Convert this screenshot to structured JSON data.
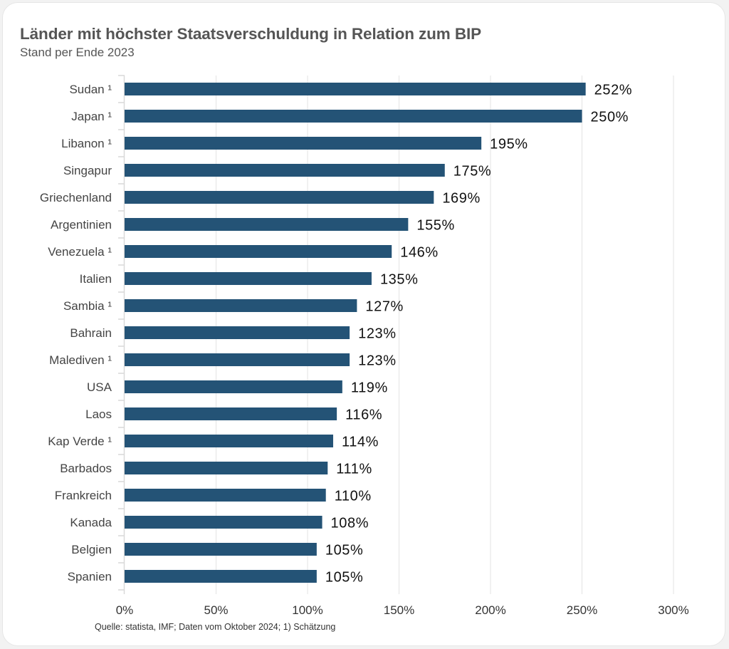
{
  "chart_data": {
    "type": "bar",
    "orientation": "horizontal",
    "title": "Länder mit höchster Staatsverschuldung in Relation zum BIP",
    "subtitle": "Stand per Ende 2023",
    "xlabel": "",
    "ylabel": "",
    "categories": [
      "Sudan ¹",
      "Japan ¹",
      "Libanon ¹",
      "Singapur",
      "Griechenland",
      "Argentinien",
      "Venezuela ¹",
      "Italien",
      "Sambia ¹",
      "Bahrain",
      "Malediven ¹",
      "USA",
      "Laos",
      "Kap Verde ¹",
      "Barbados",
      "Frankreich",
      "Kanada",
      "Belgien",
      "Spanien"
    ],
    "values": [
      252,
      250,
      195,
      175,
      169,
      155,
      146,
      135,
      127,
      123,
      123,
      119,
      116,
      114,
      111,
      110,
      108,
      105,
      105
    ],
    "value_labels": [
      "252%",
      "250%",
      "195%",
      "175%",
      "169%",
      "155%",
      "146%",
      "135%",
      "127%",
      "123%",
      "123%",
      "119%",
      "116%",
      "114%",
      "111%",
      "110%",
      "108%",
      "105%",
      "105%"
    ],
    "xlim": [
      0,
      300
    ],
    "xticks": [
      0,
      50,
      100,
      150,
      200,
      250,
      300
    ],
    "xtick_labels": [
      "0%",
      "50%",
      "100%",
      "150%",
      "200%",
      "250%",
      "300%"
    ],
    "grid": "vertical",
    "legend": "none",
    "bar_color": "#245376",
    "source": "Quelle: statista, IMF; Daten vom Oktober 2024; 1) Schätzung"
  }
}
